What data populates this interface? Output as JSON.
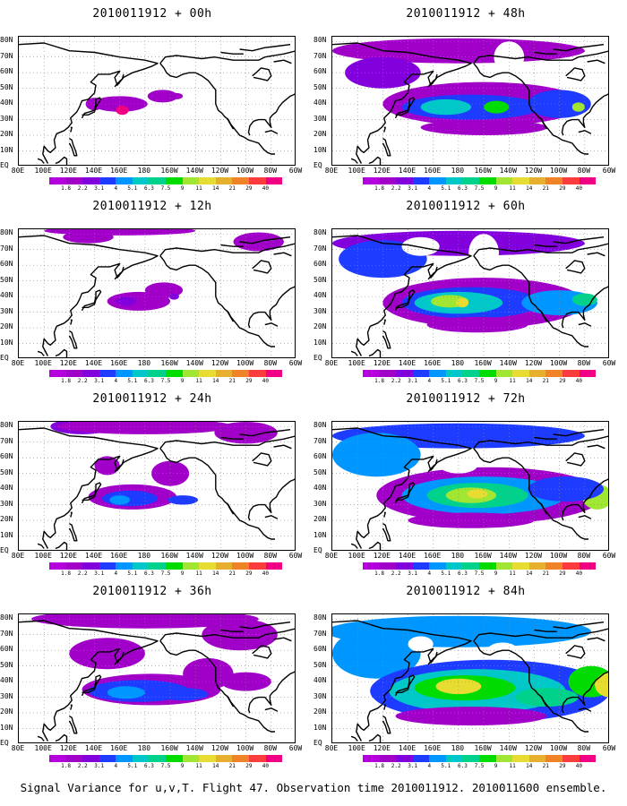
{
  "panels": [
    {
      "title": "2010011912 + 00h",
      "fh": 0
    },
    {
      "title": "2010011912 + 48h",
      "fh": 48
    },
    {
      "title": "2010011912 + 12h",
      "fh": 12
    },
    {
      "title": "2010011912 + 60h",
      "fh": 60
    },
    {
      "title": "2010011912 + 24h",
      "fh": 24
    },
    {
      "title": "2010011912 + 72h",
      "fh": 72
    },
    {
      "title": "2010011912 + 36h",
      "fh": 36
    },
    {
      "title": "2010011912 + 84h",
      "fh": 84
    }
  ],
  "x_ticks": [
    "80E",
    "100E",
    "120E",
    "140E",
    "160E",
    "180",
    "160W",
    "140W",
    "120W",
    "100W",
    "80W",
    "60W"
  ],
  "y_ticks": [
    "80N",
    "70N",
    "60N",
    "50N",
    "40N",
    "30N",
    "20N",
    "10N",
    "EQ"
  ],
  "colorbar": {
    "labels": [
      "1.8",
      "2.2",
      "3.1",
      "4",
      "5.1",
      "6.3",
      "7.5",
      "9",
      "11",
      "14",
      "21",
      "29",
      "40"
    ],
    "colors": [
      "#a000c8",
      "#8200dc",
      "#1e3cff",
      "#0096ff",
      "#00c8c8",
      "#00d28c",
      "#00dc00",
      "#a0e632",
      "#e6dc32",
      "#e6af2d",
      "#f08228",
      "#fa3c3c",
      "#f00082"
    ]
  },
  "caption": "Signal Variance for u,v,T. Flight 47. Observation time 2010011912. 2010011600 ensemble."
}
